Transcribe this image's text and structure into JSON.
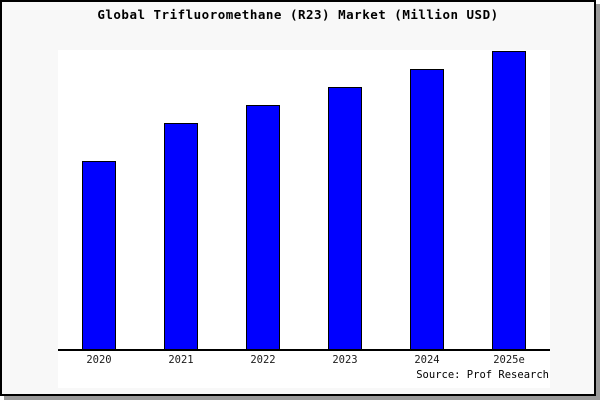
{
  "colors": {
    "page_bg": "#f8f8f8",
    "plot_bg": "#ffffff",
    "bar_fill": "#0000ff",
    "bar_border": "#000000",
    "axis": "#000000",
    "frame_border": "#000000",
    "frame_shadow": "#9a9a9a"
  },
  "chart_data": {
    "type": "bar",
    "title": "Global Trifluoromethane (R23) Market (Million USD)",
    "categories": [
      "2020",
      "2021",
      "2022",
      "2023",
      "2024",
      "2025e"
    ],
    "values": [
      63,
      76,
      82,
      88,
      94,
      100
    ],
    "value_note": "relative bar heights in % of tallest (2025e) bar; chart shows no y-axis scale",
    "xlabel": "",
    "ylabel": "",
    "ylim": [
      0,
      100
    ],
    "grid": false,
    "legend": false,
    "bar_color": "#0000ff",
    "source": "Source: Prof Research"
  }
}
